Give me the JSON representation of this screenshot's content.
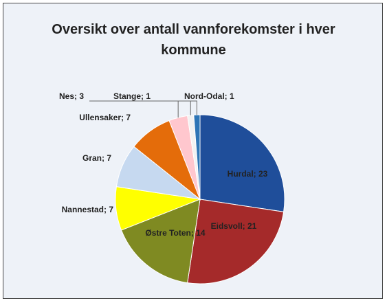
{
  "chart_data": {
    "type": "pie",
    "title": "Oversikt over antall vannforekomster i hver kommune",
    "values": [
      23,
      21,
      14,
      7,
      7,
      7,
      3,
      1,
      1
    ],
    "value_labels": [
      "Hurdal; 23",
      "Eidsvoll; 21",
      "Østre Toten; 14",
      "Nannestad; 7",
      "Gran; 7",
      "Ullensaker; 7",
      "Nes; 3",
      "Stange; 1",
      "Nord-Odal; 1"
    ],
    "colors": [
      "#1f4e9a",
      "#a52a2a",
      "#7f8a22",
      "#ffff00",
      "#c6d9f0",
      "#e46c0a",
      "#ffc7ce",
      "#f2f2f2",
      "#2e75b6"
    ]
  }
}
